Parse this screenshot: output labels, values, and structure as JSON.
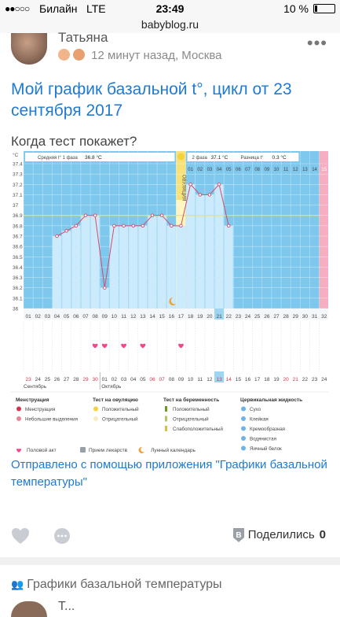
{
  "status": {
    "signal": "●●○○○",
    "carrier": "Билайн",
    "network": "LTE",
    "time": "23:49",
    "battery": "10 %"
  },
  "browser": {
    "url": "babyblog.ru"
  },
  "post": {
    "author": "Татьяна",
    "time_ago": "12 минут назад",
    "city": ", Москва",
    "title": "Мой график базальной t°, цикл от 23 сентября 2017",
    "subtitle": "Когда тест покажет?",
    "sent_from": "Отправлено с помощью приложения \"Графики базальной температуры\""
  },
  "actions": {
    "share_label": "Поделились",
    "share_count": "0"
  },
  "group": {
    "name": "Графики базальной температуры"
  },
  "next": {
    "author": "Т..."
  },
  "chart_data": {
    "type": "line",
    "info": {
      "phase1_label": "Средняя t° 1 фаза",
      "phase1_value": "36.8 °C",
      "phase2_label": "2 фаза",
      "phase2_value": "37.1 °C",
      "diff_label": "Разница t°",
      "diff_value": "0.3 °C"
    },
    "y_unit": "°C",
    "ylim": [
      36,
      37.4
    ],
    "y_ticks": [
      "37.4",
      "37.3",
      "37.2",
      "37.1",
      "37",
      "36.9",
      "36.8",
      "36.7",
      "36.6",
      "36.5",
      "36.4",
      "36.3",
      "36.2",
      "36.1",
      "36"
    ],
    "cycle_days": [
      "01",
      "02",
      "03",
      "04",
      "05",
      "06",
      "07",
      "08",
      "09",
      "10",
      "11",
      "12",
      "13",
      "14",
      "15",
      "16",
      "17",
      "18",
      "19",
      "20",
      "21",
      "22",
      "23",
      "24",
      "25",
      "26",
      "27",
      "28",
      "29",
      "30",
      "31",
      "32"
    ],
    "top_days": [
      "01",
      "02",
      "03",
      "04",
      "05",
      "06",
      "07",
      "08",
      "09",
      "10",
      "11",
      "12",
      "13",
      "14",
      "15"
    ],
    "dates": [
      "23",
      "24",
      "25",
      "26",
      "27",
      "28",
      "29",
      "30",
      "01",
      "02",
      "03",
      "04",
      "05",
      "06",
      "07",
      "08",
      "09",
      "10",
      "11",
      "12",
      "13",
      "14",
      "15",
      "16",
      "17",
      "18",
      "19",
      "20",
      "21",
      "22",
      "23",
      "24"
    ],
    "month_labels": [
      "Сентябрь",
      "Октябрь"
    ],
    "ovulation_label": "ОВУЛЯЦИЯ",
    "coverline": 36.9,
    "temps": [
      null,
      null,
      null,
      36.7,
      36.75,
      36.8,
      36.9,
      36.9,
      36.2,
      36.8,
      36.8,
      36.8,
      36.8,
      36.9,
      36.9,
      36.8,
      36.8,
      37.2,
      37.1,
      37.1,
      37.2,
      36.8
    ],
    "intercourse_days": [
      8,
      9,
      11,
      13,
      17
    ],
    "current_day": 21,
    "legend": {
      "menstruation": {
        "title": "Менструация",
        "items": [
          "Менструация",
          "Небольшие выделения"
        ]
      },
      "ovulation_test": {
        "title": "Тест на овуляцию",
        "items": [
          "Положительный",
          "Отрицательный"
        ]
      },
      "pregnancy_test": {
        "title": "Тест на беременность",
        "items": [
          "Положительный",
          "Отрицательный",
          "Слабоположительный"
        ]
      },
      "cervical": {
        "title": "Цервикальная жидкость",
        "items": [
          "Сухо",
          "Клейкая",
          "Кремообразная",
          "Водянистая",
          "Яичный белок"
        ]
      },
      "extra": [
        "Половой акт",
        "Прием лекарств",
        "Лунный календарь"
      ]
    },
    "colors": {
      "phase1": "#7ec8ee",
      "bar": "#cbeafb",
      "ovulation": "#fff6c2",
      "ovulation_label_bg": "#f7e27a",
      "last": "#f6aec1",
      "line": "#d24a6c",
      "coverline": "#e8e36a",
      "current": "#9ed6f2"
    }
  }
}
